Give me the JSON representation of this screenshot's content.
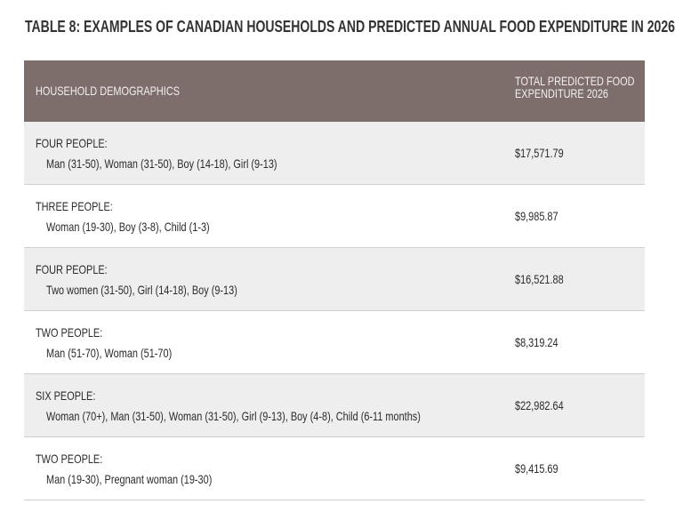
{
  "title": "TABLE 8: EXAMPLES OF CANADIAN HOUSEHOLDS AND PREDICTED ANNUAL FOOD EXPENDITURE IN 2026",
  "table": {
    "header": [
      "HOUSEHOLD DEMOGRAPHICS",
      "TOTAL PREDICTED FOOD EXPENDITURE 2026"
    ],
    "rows": [
      {
        "group": "FOUR PEOPLE:",
        "members": "Man (31-50), Woman (31-50), Boy (14-18), Girl (9-13)",
        "expenditure": "$17,571.79"
      },
      {
        "group": "THREE PEOPLE:",
        "members": "Woman (19-30), Boy (3-8), Child (1-3)",
        "expenditure": "$9,985.87"
      },
      {
        "group": "FOUR PEOPLE:",
        "members": "Two women (31-50), Girl (14-18), Boy (9-13)",
        "expenditure": "$16,521.88"
      },
      {
        "group": "TWO PEOPLE:",
        "members": "Man (51-70), Woman (51-70)",
        "expenditure": "$8,319.24"
      },
      {
        "group": "SIX PEOPLE:",
        "members": "Woman (70+), Man (31-50), Woman (31-50), Girl (9-13), Boy (4-8), Child (6-11 months)",
        "expenditure": "$22,982.64"
      },
      {
        "group": "TWO PEOPLE:",
        "members": "Man (19-30), Pregnant woman (19-30)",
        "expenditure": "$9,415.69"
      }
    ]
  }
}
